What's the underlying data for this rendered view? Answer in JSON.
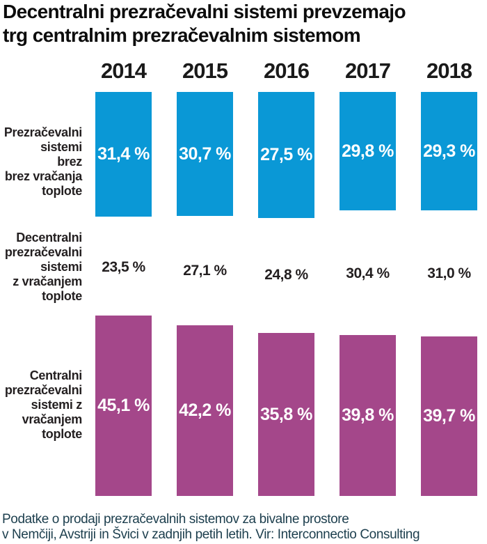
{
  "title": "Decentralni prezračevalni sistemi prevzemajo\ntrg centralnim prezračevalnim sistemom",
  "footer": "Podatke o prodaji prezračevalnih sistemov za bivalne prostore\nv Nemčiji, Avstriji in Švici v zadnjih petih letih. Vir: Interconnectio Consulting",
  "colors": {
    "blue_bar": "#0a98d6",
    "purple_bar": "#a4478a",
    "value_on_bar": "#ffffff",
    "heading_text": "#0d0d0d",
    "body_text": "#231f20",
    "footer_text": "#1c3e4d"
  },
  "row_labels": {
    "row1": "Prezračevalni\nsistemi\nbrez\nbrez vračanja\ntoplote",
    "row2": "Decentralni\nprezračevalni\nsistemi\nz vračanjem\ntoplote",
    "row3": "Centralni\nprezračevalni\nsistemi z\nvračanjem\ntoplote"
  },
  "chart_data": {
    "type": "bar",
    "title": "Decentralni prezračevalni sistemi prevzemajo trg centralnim prezračevalnim sistemom",
    "categories": [
      "2014",
      "2015",
      "2016",
      "2017",
      "2018"
    ],
    "unit": "%",
    "legend_position": "left-row-labels",
    "grid": false,
    "series": [
      {
        "name": "Prezračevalni sistemi brez brez vračanja toplote",
        "display": "bar",
        "color": "#0a98d6",
        "values": [
          31.4,
          30.7,
          27.5,
          29.8,
          29.3
        ],
        "labels": [
          "31,4 %",
          "30,7 %",
          "27,5 %",
          "29,8 %",
          "29,3 %"
        ]
      },
      {
        "name": "Decentralni prezračevalni sistemi z vračanjem toplote",
        "display": "text-only",
        "color": "#231f20",
        "values": [
          23.5,
          27.1,
          24.8,
          30.4,
          31.0
        ],
        "labels": [
          "23,5 %",
          "27,1 %",
          "24,8 %",
          "30,4 %",
          "31,0 %"
        ]
      },
      {
        "name": "Centralni prezračevalni sistemi z vračanjem toplote",
        "display": "bar",
        "color": "#a4478a",
        "values": [
          45.1,
          42.2,
          35.8,
          39.8,
          39.7
        ],
        "labels": [
          "45,1 %",
          "42,2 %",
          "35,8 %",
          "39,8 %",
          "39,7 %"
        ]
      }
    ],
    "source_note": "Vir: Interconnectio Consulting"
  }
}
